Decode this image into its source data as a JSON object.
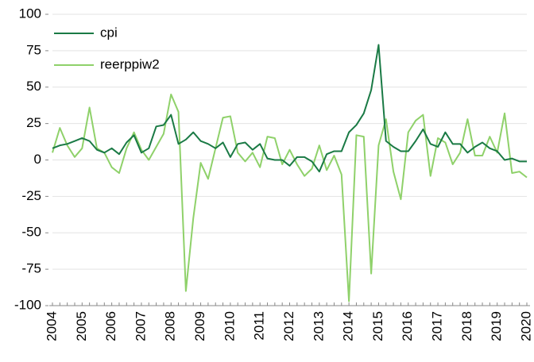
{
  "chart_data": {
    "type": "line",
    "categories": [
      "2004",
      null,
      null,
      null,
      "2005",
      null,
      null,
      null,
      "2006",
      null,
      null,
      null,
      "2007",
      null,
      null,
      null,
      "2008",
      null,
      null,
      null,
      "2009",
      null,
      null,
      null,
      "2010",
      null,
      null,
      null,
      "2011",
      null,
      null,
      null,
      "2012",
      null,
      null,
      null,
      "2013",
      null,
      null,
      null,
      "2014",
      null,
      null,
      null,
      "2015",
      null,
      null,
      null,
      "2016",
      null,
      null,
      null,
      "2017",
      null,
      null,
      null,
      "2018",
      null,
      null,
      null,
      "2019",
      null,
      null,
      null,
      "2020"
    ],
    "series": [
      {
        "name": "cpi",
        "color": "#1a7a45",
        "values": [
          8,
          10,
          11,
          13,
          15,
          13,
          7,
          5,
          8,
          4,
          12,
          17,
          5,
          8,
          23,
          24,
          31,
          11,
          14,
          19,
          13,
          11,
          8,
          12,
          2,
          11,
          12,
          7,
          11,
          1,
          0,
          0,
          -4,
          2,
          2,
          -1,
          -8,
          4,
          6,
          6,
          19,
          24,
          32,
          48,
          79,
          13,
          9,
          6,
          6,
          13,
          21,
          11,
          9,
          19,
          11,
          11,
          5,
          9,
          12,
          8,
          6,
          0,
          1,
          -1,
          -1
        ]
      },
      {
        "name": "reerppiw2",
        "color": "#8fd16a",
        "values": [
          5,
          22,
          10,
          2,
          8,
          36,
          8,
          5,
          -5,
          -9,
          8,
          19,
          7,
          0,
          9,
          18,
          45,
          33,
          -90,
          -40,
          -2,
          -13,
          8,
          29,
          30,
          5,
          -1,
          5,
          -5,
          16,
          15,
          -3,
          7,
          -3,
          -11,
          -6,
          10,
          -7,
          3,
          -10,
          -97,
          17,
          16,
          -78,
          10,
          28,
          -8,
          -27,
          19,
          27,
          31,
          -11,
          15,
          12,
          -3,
          5,
          28,
          3,
          3,
          16,
          5,
          32,
          -9,
          -8,
          -12
        ]
      }
    ],
    "ylim": [
      -100,
      100
    ],
    "yticks": [
      -100,
      -75,
      -50,
      -25,
      0,
      25,
      50,
      75,
      100
    ],
    "grid": true,
    "legend": "top-left"
  }
}
